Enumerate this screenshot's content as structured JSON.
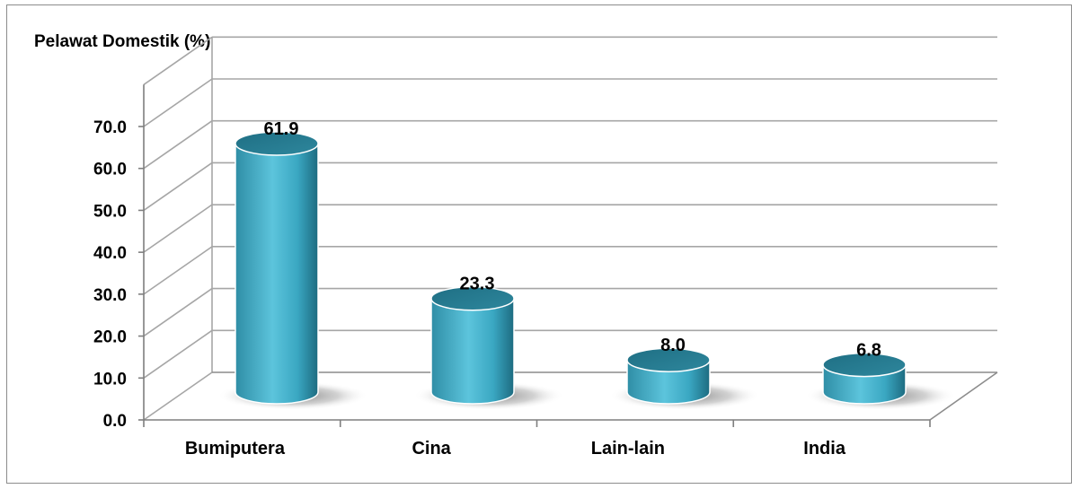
{
  "chart_data": {
    "type": "bar",
    "title": "Pelawat Domestik (%)",
    "categories": [
      "Bumiputera",
      "Cina",
      "Lain-lain",
      "India"
    ],
    "values": [
      61.9,
      23.3,
      8.0,
      6.8
    ],
    "value_labels": [
      "61.9",
      "23.3",
      "8.0",
      "6.8"
    ],
    "ylim": [
      0,
      70
    ],
    "yticks": [
      "0.0",
      "10.0",
      "20.0",
      "30.0",
      "40.0",
      "50.0",
      "60.0",
      "70.0"
    ],
    "xlabel": "",
    "ylabel": "",
    "grid": true,
    "legend": "none",
    "bar_color": "#3aa7c2"
  }
}
